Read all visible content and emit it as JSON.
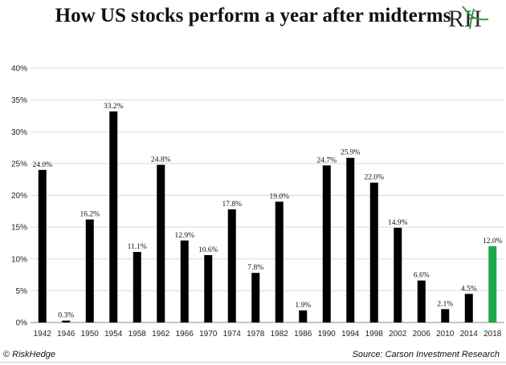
{
  "title": "How US stocks perform a year after midterms",
  "logo": {
    "text": "RH",
    "accent_color": "#2e9e3e"
  },
  "footer": {
    "copyright_symbol": "©",
    "brand": "RiskHedge",
    "source": "Source: Carson Investment Research"
  },
  "chart_data": {
    "type": "bar",
    "categories": [
      "1942",
      "1946",
      "1950",
      "1954",
      "1958",
      "1962",
      "1966",
      "1970",
      "1974",
      "1978",
      "1982",
      "1986",
      "1990",
      "1994",
      "1998",
      "2002",
      "2006",
      "2010",
      "2014",
      "2018"
    ],
    "values": [
      24.0,
      0.3,
      16.2,
      33.2,
      11.1,
      24.8,
      12.9,
      10.6,
      17.8,
      7.8,
      19.0,
      1.9,
      24.7,
      25.9,
      22.0,
      14.9,
      6.6,
      2.1,
      4.5,
      12.0
    ],
    "data_labels": [
      "24.0%",
      "0.3%",
      "16.2%",
      "33.2%",
      "11.1%",
      "24.8%",
      "12.9%",
      "10.6%",
      "17.8%",
      "7.8%",
      "19.0%",
      "1.9%",
      "24.7%",
      "25.9%",
      "22.0%",
      "14.9%",
      "6.6%",
      "2.1%",
      "4.5%",
      "12.0%"
    ],
    "y_ticks": [
      "0%",
      "5%",
      "10%",
      "15%",
      "20%",
      "25%",
      "30%",
      "35%",
      "40%"
    ],
    "ylim": [
      0,
      40
    ],
    "bar_color": "#000000",
    "highlight_index": 19,
    "highlight_color": "#1fa84a",
    "grid": "horizontal"
  }
}
